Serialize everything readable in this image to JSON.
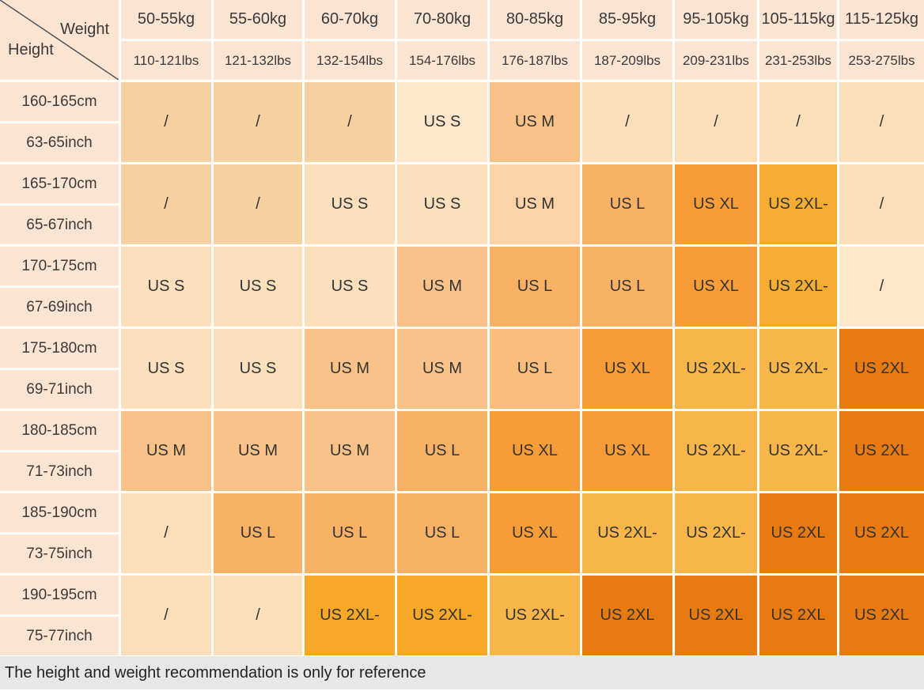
{
  "table": {
    "corner": {
      "weight_label": "Weight",
      "height_label": "Height"
    },
    "weight_headers_kg": [
      "50-55kg",
      "55-60kg",
      "60-70kg",
      "70-80kg",
      "80-85kg",
      "85-95kg",
      "95-105kg",
      "105-115kg",
      "115-125kg"
    ],
    "weight_headers_lbs": [
      "110-121lbs",
      "121-132lbs",
      "132-154lbs",
      "154-176lbs",
      "176-187lbs",
      "187-209lbs",
      "209-231lbs",
      "231-253lbs",
      "253-275lbs"
    ],
    "rows": [
      {
        "height_cm": "160-165cm",
        "height_inch": "63-65inch",
        "cells": [
          {
            "label": "/",
            "color": "na_med"
          },
          {
            "label": "/",
            "color": "na_med"
          },
          {
            "label": "/",
            "color": "na_med"
          },
          {
            "label": "US S",
            "color": "s_xlight"
          },
          {
            "label": "US M",
            "color": "m"
          },
          {
            "label": "/",
            "color": "na_light"
          },
          {
            "label": "/",
            "color": "na_light"
          },
          {
            "label": "/",
            "color": "na_light"
          },
          {
            "label": "/",
            "color": "na_light"
          }
        ]
      },
      {
        "height_cm": "165-170cm",
        "height_inch": "65-67inch",
        "cells": [
          {
            "label": "/",
            "color": "na_med"
          },
          {
            "label": "/",
            "color": "na_med"
          },
          {
            "label": "US S",
            "color": "s_light"
          },
          {
            "label": "US S",
            "color": "s_light"
          },
          {
            "label": "US M",
            "color": "m_light"
          },
          {
            "label": "US L",
            "color": "l"
          },
          {
            "label": "US XL",
            "color": "xl"
          },
          {
            "label": "US 2XL-",
            "color": "gold"
          },
          {
            "label": "/",
            "color": "na_light"
          }
        ]
      },
      {
        "height_cm": "170-175cm",
        "height_inch": "67-69inch",
        "cells": [
          {
            "label": "US S",
            "color": "s_light"
          },
          {
            "label": "US S",
            "color": "s_light"
          },
          {
            "label": "US S",
            "color": "s_light"
          },
          {
            "label": "US M",
            "color": "m"
          },
          {
            "label": "US L",
            "color": "l"
          },
          {
            "label": "US L",
            "color": "l"
          },
          {
            "label": "US XL",
            "color": "xl"
          },
          {
            "label": "US 2XL-",
            "color": "gold"
          },
          {
            "label": "/",
            "color": "s_xlight"
          }
        ]
      },
      {
        "height_cm": "175-180cm",
        "height_inch": "69-71inch",
        "cells": [
          {
            "label": "US S",
            "color": "s_light"
          },
          {
            "label": "US S",
            "color": "s_light"
          },
          {
            "label": "US M",
            "color": "m"
          },
          {
            "label": "US M",
            "color": "m"
          },
          {
            "label": "US L",
            "color": "l_light"
          },
          {
            "label": "US XL",
            "color": "xl"
          },
          {
            "label": "US 2XL-",
            "color": "gold2"
          },
          {
            "label": "US 2XL-",
            "color": "gold2"
          },
          {
            "label": "US 2XL",
            "color": "dark"
          }
        ]
      },
      {
        "height_cm": "180-185cm",
        "height_inch": "71-73inch",
        "cells": [
          {
            "label": "US M",
            "color": "m"
          },
          {
            "label": "US M",
            "color": "m"
          },
          {
            "label": "US M",
            "color": "m"
          },
          {
            "label": "US L",
            "color": "l"
          },
          {
            "label": "US XL",
            "color": "xl"
          },
          {
            "label": "US XL",
            "color": "xl"
          },
          {
            "label": "US 2XL-",
            "color": "gold2"
          },
          {
            "label": "US 2XL-",
            "color": "gold2"
          },
          {
            "label": "US 2XL",
            "color": "dark"
          }
        ]
      },
      {
        "height_cm": "185-190cm",
        "height_inch": "73-75inch",
        "cells": [
          {
            "label": "/",
            "color": "na_light"
          },
          {
            "label": "US L",
            "color": "l"
          },
          {
            "label": "US L",
            "color": "l"
          },
          {
            "label": "US L",
            "color": "l"
          },
          {
            "label": "US XL",
            "color": "xl"
          },
          {
            "label": "US 2XL-",
            "color": "gold2"
          },
          {
            "label": "US 2XL-",
            "color": "gold2"
          },
          {
            "label": "US 2XL",
            "color": "dark"
          },
          {
            "label": "US 2XL",
            "color": "dark"
          }
        ]
      },
      {
        "height_cm": "190-195cm",
        "height_inch": "75-77inch",
        "cells": [
          {
            "label": "/",
            "color": "na_light"
          },
          {
            "label": "/",
            "color": "na_light"
          },
          {
            "label": "US 2XL-",
            "color": "gold3"
          },
          {
            "label": "US 2XL-",
            "color": "gold3"
          },
          {
            "label": "US 2XL-",
            "color": "gold2"
          },
          {
            "label": "US 2XL",
            "color": "dark"
          },
          {
            "label": "US 2XL",
            "color": "dark"
          },
          {
            "label": "US 2XL",
            "color": "dark"
          },
          {
            "label": "US 2XL",
            "color": "dark"
          }
        ]
      }
    ]
  },
  "palette": {
    "na_med": "#f5d0a0",
    "na_light": "#fadfb8",
    "s_xlight": "#fde6ca",
    "s_light": "#fce0bc",
    "m": "#f9c288",
    "m_light": "#fbd3a6",
    "l": "#f9b166",
    "l_light": "#fbbd7c",
    "xl": "#f89c38",
    "gold": "#f7ad33",
    "gold2": "#f8b64a",
    "gold3": "#f7a829",
    "dark": "#e87a10"
  },
  "colors": {
    "header_bg": "#fce4d3",
    "footer_bg": "#e7e7e7",
    "diagonal_line": "#555555"
  },
  "footer": {
    "note": "The height and weight recommendation is only for reference"
  }
}
